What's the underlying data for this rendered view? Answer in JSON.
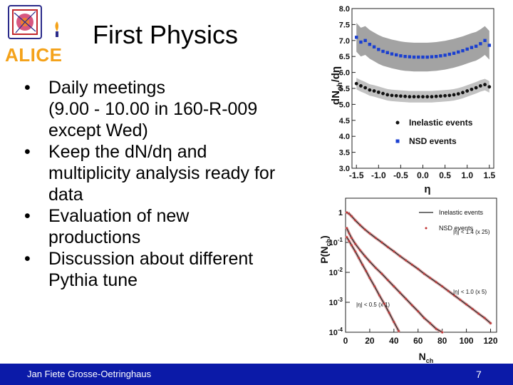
{
  "slide": {
    "logo_text": "ALICE",
    "title": "First Physics",
    "bullets": [
      {
        "line1": "Daily meetings",
        "line2": "(9.00 - 10.00 in 160-R-009",
        "line3": "except Wed)"
      },
      {
        "line1": "Keep the dN/dη and",
        "line2": "multiplicity analysis ready for",
        "line3": "data"
      },
      {
        "line1": "Evaluation of new",
        "line2": "productions"
      },
      {
        "line1": "Discussion about different",
        "line2": "Pythia tune"
      }
    ],
    "bullet_char": "•"
  },
  "footer": {
    "author": "Jan Fiete Grosse-Oetringhaus",
    "page_number": "7",
    "color": "#0b1aa8"
  },
  "chart_data": [
    {
      "type": "scatter",
      "ylabel_main": "dN",
      "ylabel_sub": "ch",
      "ylabel_tail": "/dη",
      "xlabel": "η",
      "xlim": [
        -1.6,
        1.6
      ],
      "ylim": [
        3.0,
        8.0
      ],
      "x_ticks": [
        "-1.5",
        "-1.0",
        "-0.5",
        "0.0",
        "0.5",
        "1.0",
        "1.5"
      ],
      "x_tick_values": [
        -1.5,
        -1.0,
        -0.5,
        0.0,
        0.5,
        1.0,
        1.5
      ],
      "y_ticks": [
        "3.0",
        "3.5",
        "4.0",
        "4.5",
        "5.0",
        "5.5",
        "6.0",
        "6.5",
        "7.0",
        "7.5",
        "8.0"
      ],
      "y_tick_values": [
        3.0,
        3.5,
        4.0,
        4.5,
        5.0,
        5.5,
        6.0,
        6.5,
        7.0,
        7.5,
        8.0
      ],
      "x": [
        -1.5,
        -1.4,
        -1.3,
        -1.2,
        -1.1,
        -1.0,
        -0.9,
        -0.8,
        -0.7,
        -0.6,
        -0.5,
        -0.4,
        -0.3,
        -0.2,
        -0.1,
        0.0,
        0.1,
        0.2,
        0.3,
        0.4,
        0.5,
        0.6,
        0.7,
        0.8,
        0.9,
        1.0,
        1.1,
        1.2,
        1.3,
        1.4,
        1.5
      ],
      "series": [
        {
          "name": "Inelastic events",
          "color": "#111111",
          "band_color": "#bbbbbb",
          "values": [
            5.65,
            5.58,
            5.52,
            5.45,
            5.42,
            5.38,
            5.34,
            5.3,
            5.28,
            5.27,
            5.26,
            5.25,
            5.24,
            5.24,
            5.24,
            5.24,
            5.24,
            5.24,
            5.25,
            5.26,
            5.27,
            5.28,
            5.3,
            5.33,
            5.37,
            5.42,
            5.47,
            5.52,
            5.58,
            5.62,
            5.55
          ]
        },
        {
          "name": "NSD events",
          "color": "#1a3fd0",
          "band_color": "#999999",
          "values": [
            7.1,
            6.95,
            7.0,
            6.88,
            6.8,
            6.72,
            6.66,
            6.62,
            6.58,
            6.55,
            6.52,
            6.5,
            6.49,
            6.48,
            6.48,
            6.48,
            6.48,
            6.49,
            6.5,
            6.52,
            6.54,
            6.57,
            6.6,
            6.64,
            6.68,
            6.73,
            6.78,
            6.82,
            6.9,
            7.0,
            6.85
          ]
        }
      ],
      "legend_position": "bottom-right"
    },
    {
      "type": "line",
      "ylabel_main": "P(N",
      "ylabel_sub": "ch",
      "ylabel_tail": ")",
      "xlabel_main": "N",
      "xlabel_sub": "ch",
      "xlim": [
        0,
        125
      ],
      "ylim": [
        0.0001,
        3
      ],
      "log_y": true,
      "x_ticks": [
        "0",
        "20",
        "40",
        "60",
        "80",
        "100",
        "120"
      ],
      "x_tick_values": [
        0,
        20,
        40,
        60,
        80,
        100,
        120
      ],
      "y_ticks": [
        "1",
        "10",
        "10",
        "10",
        "10"
      ],
      "y_tick_exponents": [
        "",
        "-1",
        "-2",
        "-3",
        "-4"
      ],
      "y_tick_values": [
        1,
        0.1,
        0.01,
        0.001,
        0.0001
      ],
      "legend": [
        "Inelastic events",
        "NSD events"
      ],
      "legend_position": "top-right",
      "annotations": [
        "|η| < 1.4 (x 25)",
        "|η| < 1.0 (x 5)",
        "|η| < 0.5 (x 1)"
      ],
      "series": [
        {
          "name": "|η| < 1.4 (x 25)",
          "color": "#c03030",
          "x": [
            1,
            3,
            5,
            8,
            12,
            16,
            20,
            25,
            30,
            35,
            40,
            45,
            50,
            55,
            60,
            65,
            70,
            75,
            80,
            85,
            90,
            95,
            100,
            105,
            110,
            115,
            120
          ],
          "y": [
            1.0,
            0.9,
            0.75,
            0.55,
            0.38,
            0.27,
            0.2,
            0.14,
            0.1,
            0.07,
            0.05,
            0.035,
            0.025,
            0.018,
            0.013,
            0.009,
            0.0065,
            0.0047,
            0.0034,
            0.0024,
            0.0017,
            0.0012,
            0.00085,
            0.0006,
            0.00042,
            0.0003,
            0.0002
          ]
        },
        {
          "name": "|η| < 1.0 (x 5)",
          "color": "#c03030",
          "x": [
            1,
            3,
            5,
            8,
            12,
            16,
            20,
            25,
            30,
            35,
            40,
            45,
            50,
            55,
            60,
            65,
            70,
            75,
            80
          ],
          "y": [
            0.3,
            0.2,
            0.14,
            0.09,
            0.055,
            0.035,
            0.023,
            0.014,
            0.009,
            0.0055,
            0.0034,
            0.0021,
            0.0013,
            0.0008,
            0.0005,
            0.0003,
            0.0002,
            0.00013,
            0.0001
          ]
        },
        {
          "name": "|η| < 0.5 (x 1)",
          "color": "#c03030",
          "x": [
            1,
            3,
            5,
            8,
            11,
            14,
            17,
            20,
            24,
            28,
            32,
            36,
            40,
            44
          ],
          "y": [
            0.15,
            0.11,
            0.08,
            0.05,
            0.03,
            0.018,
            0.011,
            0.0065,
            0.0034,
            0.0017,
            0.0009,
            0.00045,
            0.00022,
            0.00011
          ]
        }
      ]
    }
  ]
}
